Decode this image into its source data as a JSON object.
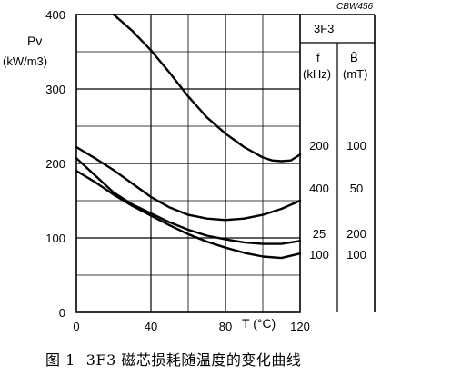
{
  "chart_data": {
    "type": "line",
    "figure_tag": "CBW456",
    "material": "3F3",
    "ylabel_line1": "Pv",
    "ylabel_line2": "(kW/m3)",
    "xlabel": "T (°C)",
    "xlim": [
      0,
      120
    ],
    "ylim": [
      0,
      400
    ],
    "x_ticks": [
      "0",
      "40",
      "80",
      "120"
    ],
    "y_ticks": [
      "0",
      "100",
      "200",
      "300",
      "400"
    ],
    "grid": true,
    "legend": {
      "header_f": "f",
      "header_f_unit": "(kHz)",
      "header_b": "B̂",
      "header_b_unit": "(mT)",
      "rows": [
        {
          "f": "200",
          "b": "100"
        },
        {
          "f": "400",
          "b": "50"
        },
        {
          "f": "25",
          "b": "200"
        },
        {
          "f": "100",
          "b": "100"
        }
      ]
    },
    "series": [
      {
        "f": "200",
        "b": "100",
        "x": [
          20,
          30,
          40,
          50,
          60,
          70,
          80,
          90,
          100,
          105,
          110,
          115,
          120
        ],
        "y": [
          400,
          378,
          352,
          322,
          290,
          262,
          240,
          222,
          208,
          204,
          203,
          204,
          212
        ]
      },
      {
        "f": "400",
        "b": "50",
        "x": [
          0,
          10,
          20,
          30,
          40,
          50,
          60,
          70,
          80,
          90,
          100,
          110,
          120
        ],
        "y": [
          222,
          207,
          191,
          173,
          155,
          141,
          131,
          126,
          124,
          126,
          131,
          139,
          150
        ]
      },
      {
        "f": "25",
        "b": "200",
        "x": [
          0,
          10,
          20,
          30,
          40,
          50,
          60,
          70,
          80,
          90,
          100,
          110,
          120
        ],
        "y": [
          207,
          184,
          161,
          145,
          133,
          121,
          111,
          103,
          98,
          94,
          92,
          92,
          96
        ]
      },
      {
        "f": "100",
        "b": "100",
        "x": [
          0,
          10,
          20,
          30,
          40,
          50,
          60,
          70,
          80,
          90,
          100,
          110,
          120
        ],
        "y": [
          190,
          175,
          158,
          143,
          130,
          117,
          105,
          95,
          87,
          80,
          75,
          73,
          79
        ]
      }
    ]
  },
  "caption": {
    "figure_no": "图 1",
    "text": "3F3 磁芯损耗随温度的变化曲线"
  }
}
